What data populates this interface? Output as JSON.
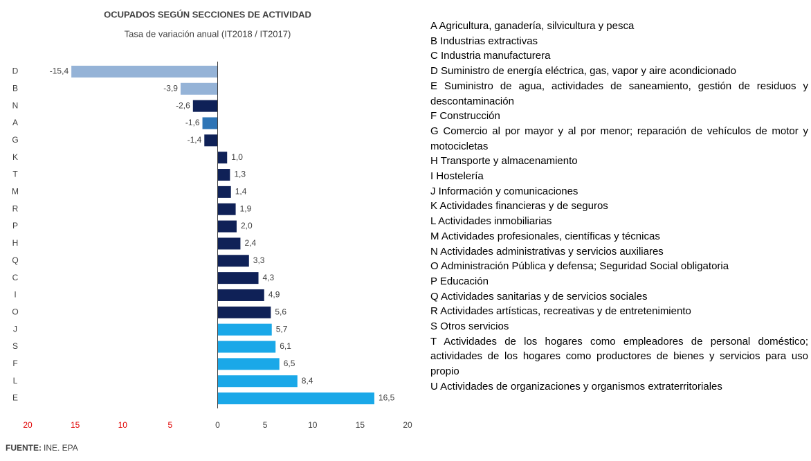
{
  "chart_data": {
    "type": "barh",
    "title": "OCUPADOS  SEGÚN SECCIONES DE ACTIVIDAD",
    "subtitle": "Tasa de variación anual (IT2018 / IT2017)",
    "categories": [
      "D",
      "B",
      "N",
      "A",
      "G",
      "K",
      "T",
      "M",
      "R",
      "P",
      "H",
      "Q",
      "C",
      "I",
      "O",
      "J",
      "S",
      "F",
      "L",
      "E"
    ],
    "values": [
      -15.4,
      -3.9,
      -2.6,
      -1.6,
      -1.4,
      1.0,
      1.3,
      1.4,
      1.9,
      2.0,
      2.4,
      3.3,
      4.3,
      4.9,
      5.6,
      5.7,
      6.1,
      6.5,
      8.4,
      16.5
    ],
    "value_labels": [
      "-15,4",
      "-3,9",
      "-2,6",
      "-1,6",
      "-1,4",
      "1,0",
      "1,3",
      "1,4",
      "1,9",
      "2,0",
      "2,4",
      "3,3",
      "4,3",
      "4,9",
      "5,6",
      "5,7",
      "6,1",
      "6,5",
      "8,4",
      "16,5"
    ],
    "colors": [
      "#95b3d7",
      "#95b3d7",
      "#0f2157",
      "#2e75b6",
      "#0f2157",
      "#0f2157",
      "#0f2157",
      "#0f2157",
      "#0f2157",
      "#0f2157",
      "#0f2157",
      "#0f2157",
      "#0f2157",
      "#0f2157",
      "#0f2157",
      "#1aa8e8",
      "#1aa8e8",
      "#1aa8e8",
      "#1aa8e8",
      "#1aa8e8"
    ],
    "xlim": [
      -20,
      20
    ],
    "xticks": [
      {
        "value": -20,
        "label": "20"
      },
      {
        "value": -15,
        "label": "15"
      },
      {
        "value": -10,
        "label": "10"
      },
      {
        "value": -5,
        "label": "5"
      },
      0,
      5,
      10,
      15,
      20
    ],
    "negative_tick_color": "#e00000",
    "source_label": "FUENTE:",
    "source": "INE. EPA"
  },
  "sections": [
    "A Agricultura, ganadería, silvicultura y pesca",
    "B Industrias extractivas",
    "C Industria manufacturera",
    "D Suministro de energía eléctrica, gas, vapor y aire acondicionado",
    "E Suministro de agua, actividades de saneamiento, gestión de residuos y descontaminación",
    "F Construcción",
    "G Comercio al por mayor y al por menor; reparación de vehículos de motor y motocicletas",
    "H Transporte y almacenamiento",
    "I Hostelería",
    "J Información y comunicaciones",
    "K Actividades financieras y de seguros",
    "L Actividades inmobiliarias",
    "M Actividades profesionales, científicas y técnicas",
    "N Actividades administrativas y servicios auxiliares",
    "O Administración Pública y defensa; Seguridad Social obligatoria",
    "P Educación",
    "Q Actividades sanitarias y de servicios sociales",
    "R Actividades artísticas, recreativas y de entretenimiento",
    "S Otros servicios",
    "T Actividades de los hogares como empleadores de personal doméstico; actividades de los hogares como productores de bienes y servicios para uso propio",
    "U Actividades de organizaciones y organismos extraterritoriales"
  ]
}
